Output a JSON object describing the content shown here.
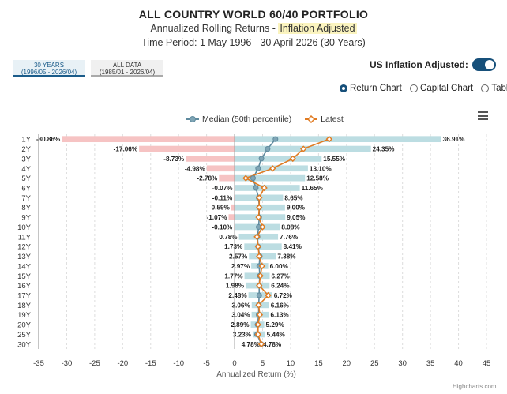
{
  "header": {
    "title": "ALL COUNTRY WORLD 60/40 PORTFOLIO",
    "subtitle_prefix": "Annualized Rolling Returns -",
    "subtitle_highlight": "Inflation Adjusted",
    "period": "Time Period: 1 May 1996 - 30 April 2026 (30 Years)"
  },
  "tabs": [
    {
      "line1": "30 YEARS",
      "line2": "(1996/05 - 2026/04)",
      "active": true
    },
    {
      "line1": "ALL DATA",
      "line2": "(1985/01 - 2026/04)",
      "active": false
    }
  ],
  "inflation_toggle": {
    "label": "US Inflation Adjusted:",
    "on": true
  },
  "view_options": [
    {
      "label": "Return Chart",
      "checked": true
    },
    {
      "label": "Capital Chart",
      "checked": false
    },
    {
      "label": "Table",
      "checked": false
    }
  ],
  "credit": "Highcharts.com",
  "colors": {
    "positive_bar": "#bcdde2",
    "negative_bar": "#f6c3c3",
    "median": "#5f8a9e",
    "latest": "#e07b22",
    "accent": "#17507a"
  },
  "chart_data": {
    "type": "bar",
    "orientation": "horizontal",
    "categories": [
      "1Y",
      "2Y",
      "3Y",
      "4Y",
      "5Y",
      "6Y",
      "7Y",
      "8Y",
      "9Y",
      "10Y",
      "11Y",
      "12Y",
      "13Y",
      "14Y",
      "15Y",
      "16Y",
      "17Y",
      "18Y",
      "19Y",
      "20Y",
      "25Y",
      "30Y"
    ],
    "min_values": [
      -30.86,
      -17.06,
      -8.73,
      -4.98,
      -2.78,
      -0.07,
      -0.11,
      -0.59,
      -1.07,
      -0.1,
      0.78,
      1.73,
      2.57,
      2.97,
      1.77,
      1.98,
      2.48,
      3.06,
      3.04,
      2.89,
      3.23,
      4.78
    ],
    "max_values": [
      36.91,
      24.35,
      15.55,
      13.1,
      12.58,
      11.65,
      8.65,
      9.0,
      9.05,
      8.08,
      7.76,
      8.41,
      7.38,
      6.0,
      6.27,
      6.24,
      6.72,
      6.16,
      6.13,
      5.29,
      5.44,
      4.78
    ],
    "min_labels": [
      "-30.86%",
      "-17.06%",
      "-8.73%",
      "-4.98%",
      "-2.78%",
      "-0.07%",
      "-0.11%",
      "-0.59%",
      "-1.07%",
      "-0.10%",
      "0.78%",
      "1.73%",
      "2.57%",
      "2.97%",
      "1.77%",
      "1.98%",
      "2.48%",
      "3.06%",
      "3.04%",
      "2.89%",
      "3.23%",
      "4.78%"
    ],
    "max_labels": [
      "36.91%",
      "24.35%",
      "15.55%",
      "13.10%",
      "12.58%",
      "11.65%",
      "8.65%",
      "9.00%",
      "9.05%",
      "8.08%",
      "7.76%",
      "8.41%",
      "7.38%",
      "6.00%",
      "6.27%",
      "6.24%",
      "6.72%",
      "6.16%",
      "6.13%",
      "5.29%",
      "5.44%",
      "4.78%"
    ],
    "series": [
      {
        "name": "Median (50th percentile)",
        "values": [
          7.3,
          5.9,
          4.8,
          4.2,
          3.3,
          3.8,
          4.3,
          4.4,
          4.4,
          4.3,
          4.1,
          4.2,
          4.5,
          4.4,
          4.5,
          4.4,
          4.4,
          4.3,
          4.3,
          4.1,
          4.0,
          4.78
        ]
      },
      {
        "name": "Latest",
        "values": [
          16.9,
          12.3,
          10.4,
          6.8,
          2.0,
          5.3,
          4.4,
          4.4,
          4.3,
          5.0,
          4.0,
          4.2,
          4.4,
          4.9,
          4.6,
          4.4,
          6.0,
          4.3,
          4.5,
          4.2,
          4.2,
          4.78
        ]
      }
    ],
    "xlabel": "Annualized Return (%)",
    "xlim": [
      -35,
      45
    ],
    "xticks": [
      -35,
      -30,
      -25,
      -20,
      -15,
      -10,
      -5,
      0,
      5,
      10,
      15,
      20,
      25,
      30,
      35,
      40,
      45
    ],
    "grid": true,
    "legend_position": "top"
  }
}
